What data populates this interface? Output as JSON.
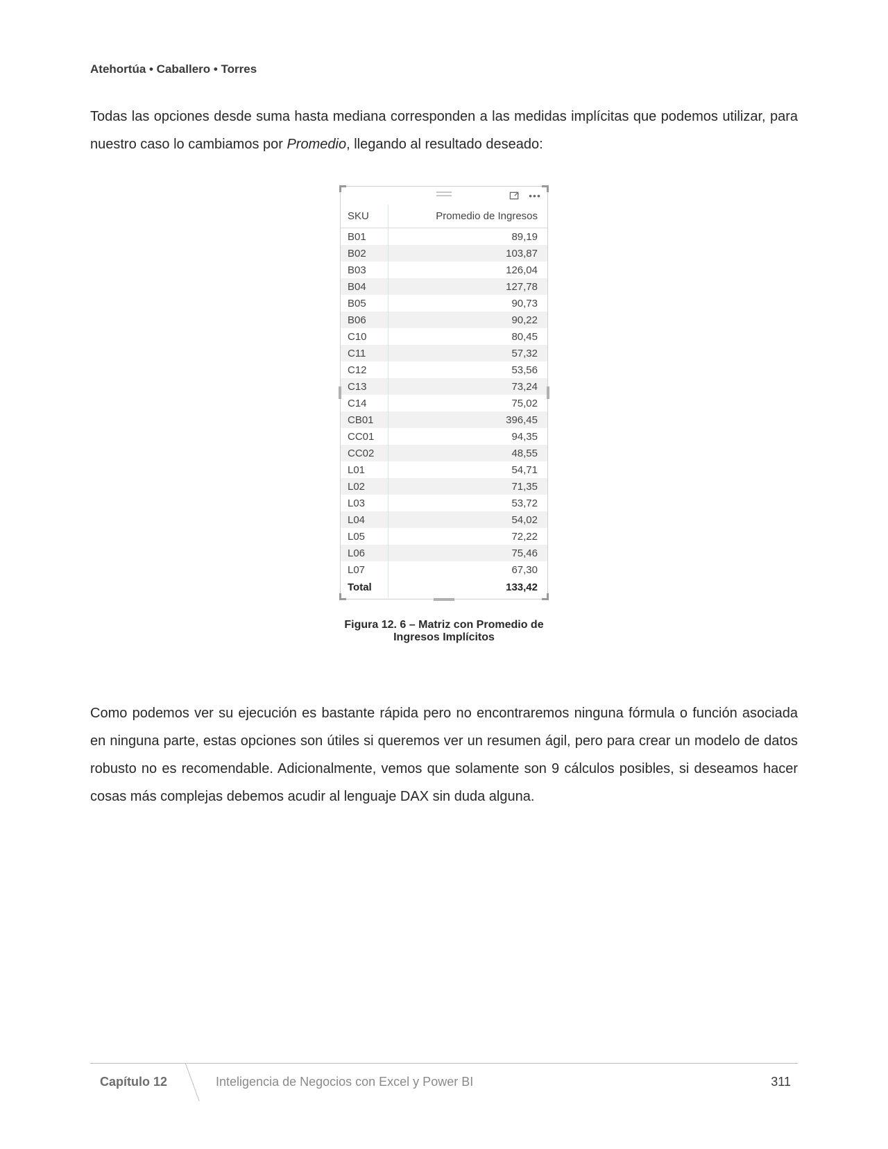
{
  "header": {
    "authors": "Atehortúa • Caballero • Torres"
  },
  "para1_a": "Todas las opciones desde suma hasta mediana corresponden a las medidas implícitas que podemos utilizar, para nuestro caso lo cambiamos por ",
  "para1_italic": "Promedio",
  "para1_b": ", llegando al resultado deseado:",
  "table": {
    "type": "table",
    "columns": [
      "SKU",
      "Promedio de Ingresos"
    ],
    "column_align": [
      "left",
      "right"
    ],
    "header_border_color": "#d8d8d8",
    "column_divider_color": "#cfe8ea",
    "row_alt_bg": "#f1f1f1",
    "background_color": "#ffffff",
    "frame_border_color": "#cfcfcf",
    "corner_color": "#9a9a9a",
    "font_size_pt": 11,
    "rows": [
      [
        "B01",
        "89,19"
      ],
      [
        "B02",
        "103,87"
      ],
      [
        "B03",
        "126,04"
      ],
      [
        "B04",
        "127,78"
      ],
      [
        "B05",
        "90,73"
      ],
      [
        "B06",
        "90,22"
      ],
      [
        "C10",
        "80,45"
      ],
      [
        "C11",
        "57,32"
      ],
      [
        "C12",
        "53,56"
      ],
      [
        "C13",
        "73,24"
      ],
      [
        "C14",
        "75,02"
      ],
      [
        "CB01",
        "396,45"
      ],
      [
        "CC01",
        "94,35"
      ],
      [
        "CC02",
        "48,55"
      ],
      [
        "L01",
        "54,71"
      ],
      [
        "L02",
        "71,35"
      ],
      [
        "L03",
        "53,72"
      ],
      [
        "L04",
        "54,02"
      ],
      [
        "L05",
        "72,22"
      ],
      [
        "L06",
        "75,46"
      ],
      [
        "L07",
        "67,30"
      ]
    ],
    "total_row": [
      "Total",
      "133,42"
    ],
    "icons": {
      "focus": "focus-mode-icon",
      "more": "more-options-icon",
      "drag": "drag-handle-icon"
    }
  },
  "figure_caption": "Figura 12. 6 – Matriz con Promedio de Ingresos Implícitos",
  "para2": "Como podemos ver su ejecución es bastante rápida pero no encontraremos ninguna fórmula o función asociada en ninguna parte, estas opciones son útiles si queremos ver un resumen ágil, pero para crear un modelo de datos robusto no es recomendable. Adicionalmente, vemos que solamente son 9 cálculos posibles, si deseamos hacer cosas más complejas debemos acudir al lenguaje DAX sin duda alguna.",
  "footer": {
    "chapter": "Capítulo 12",
    "title": "Inteligencia de Negocios con Excel y Power BI",
    "page": "311"
  }
}
